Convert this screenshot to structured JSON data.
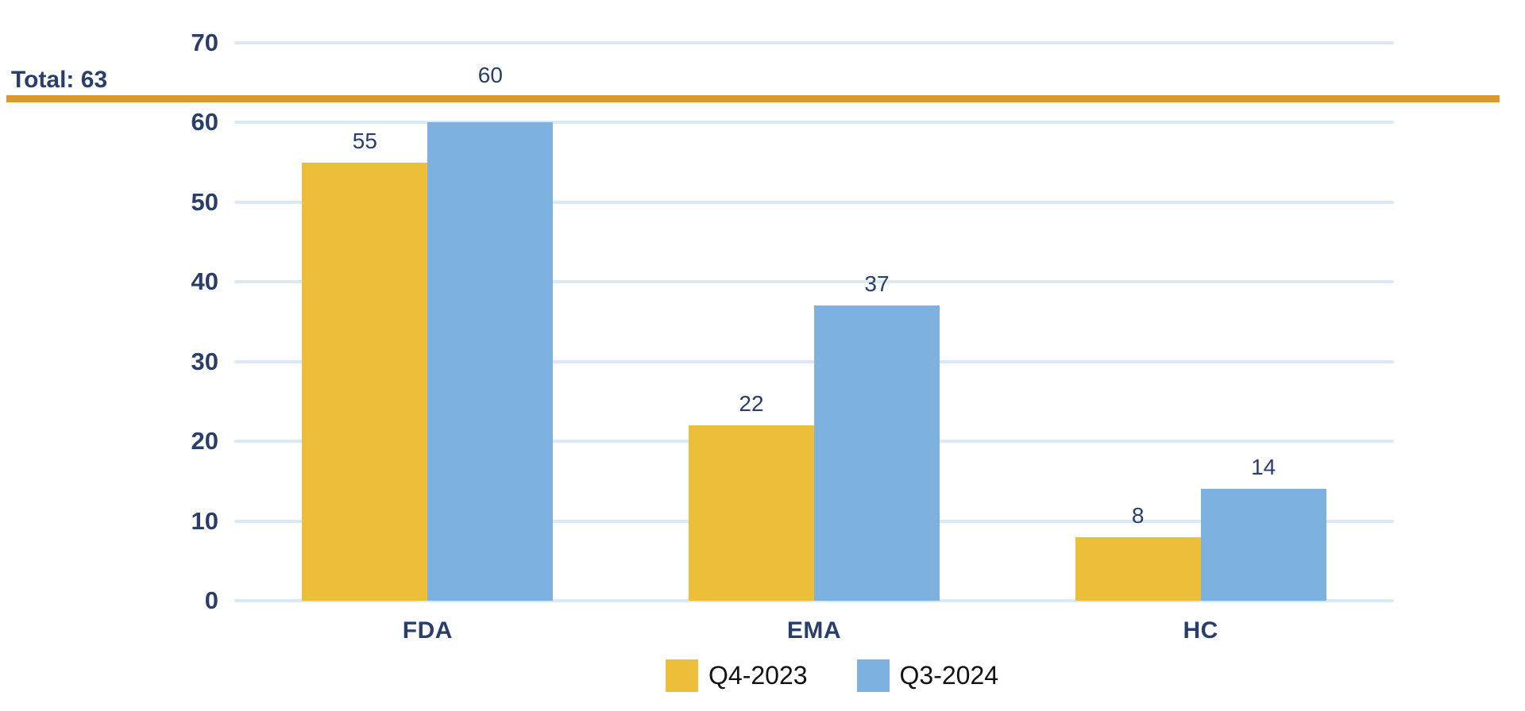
{
  "chart_data": {
    "type": "bar",
    "categories": [
      "FDA",
      "EMA",
      "HC"
    ],
    "series": [
      {
        "name": "Q4-2023",
        "color": "#ECBE3A",
        "values": [
          55,
          22,
          8
        ]
      },
      {
        "name": "Q3-2024",
        "color": "#7DB2E0",
        "values": [
          60,
          37,
          14
        ]
      }
    ],
    "title": "",
    "xlabel": "",
    "ylabel": "",
    "ylim": [
      0,
      70
    ],
    "yticks": [
      0,
      10,
      20,
      30,
      40,
      50,
      60,
      70
    ],
    "grid": true,
    "legend_position": "bottom",
    "total_annotation": {
      "label": "Total: 63",
      "value": 63
    }
  },
  "colors": {
    "text_navy": "#293E6B",
    "gridline": "#DBE8F5",
    "total_line": "#D6982F",
    "legend_text": "#111111",
    "background": "#FFFFFF"
  }
}
